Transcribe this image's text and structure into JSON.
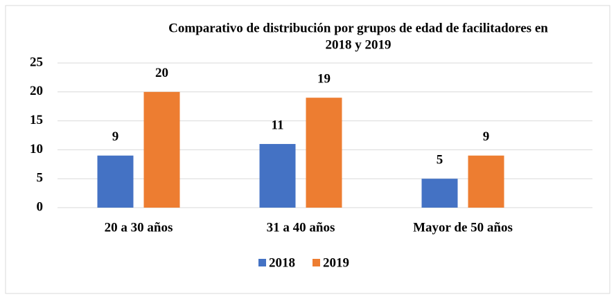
{
  "chart_data": {
    "type": "bar",
    "title": [
      "Comparativo de distribución por grupos de edad de facilitadores en",
      "2018 y 2019"
    ],
    "categories": [
      "20 a 30 años",
      "31 a 40 años",
      "Mayor de 50 años"
    ],
    "series": [
      {
        "name": "2018",
        "color": "#4472c4",
        "values": [
          9,
          11,
          5
        ]
      },
      {
        "name": "2019",
        "color": "#ed7d31",
        "values": [
          20,
          19,
          9
        ]
      }
    ],
    "ylim": [
      0,
      25
    ],
    "yticks": [
      0,
      5,
      10,
      15,
      20,
      25
    ],
    "grid": true,
    "legend": "bottom"
  }
}
